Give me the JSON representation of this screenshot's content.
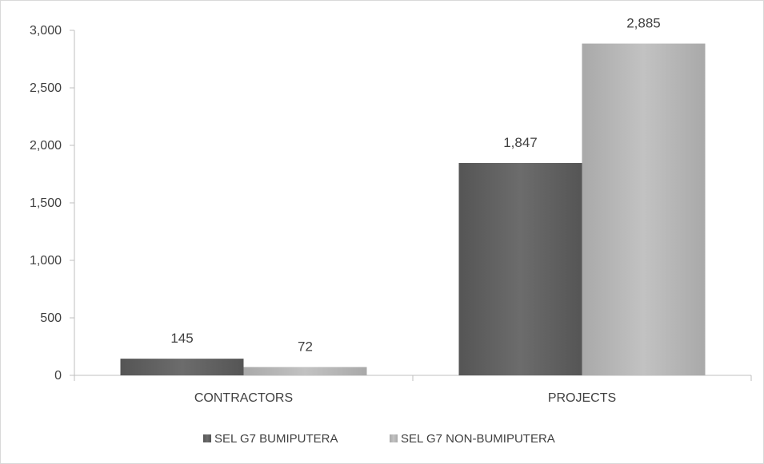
{
  "chart_data": {
    "type": "bar",
    "title": "",
    "xlabel": "",
    "ylabel": "",
    "categories": [
      "CONTRACTORS",
      "PROJECTS"
    ],
    "series": [
      {
        "name": "SEL G7 BUMIPUTERA",
        "values": [
          145,
          1847
        ],
        "color": "#5f5f5f"
      },
      {
        "name": "SEL G7 NON-BUMIPUTERA",
        "values": [
          72,
          2885
        ],
        "color": "#b4b4b4"
      }
    ],
    "data_labels": [
      [
        "145",
        "1,847"
      ],
      [
        "72",
        "2,885"
      ]
    ],
    "ylim": [
      0,
      3000
    ],
    "yticks": [
      0,
      500,
      1000,
      1500,
      2000,
      2500,
      3000
    ],
    "ytick_labels": [
      "0",
      "500",
      "1,000",
      "1,500",
      "2,000",
      "2,500",
      "3,000"
    ],
    "grid": false,
    "legend_position": "bottom"
  }
}
